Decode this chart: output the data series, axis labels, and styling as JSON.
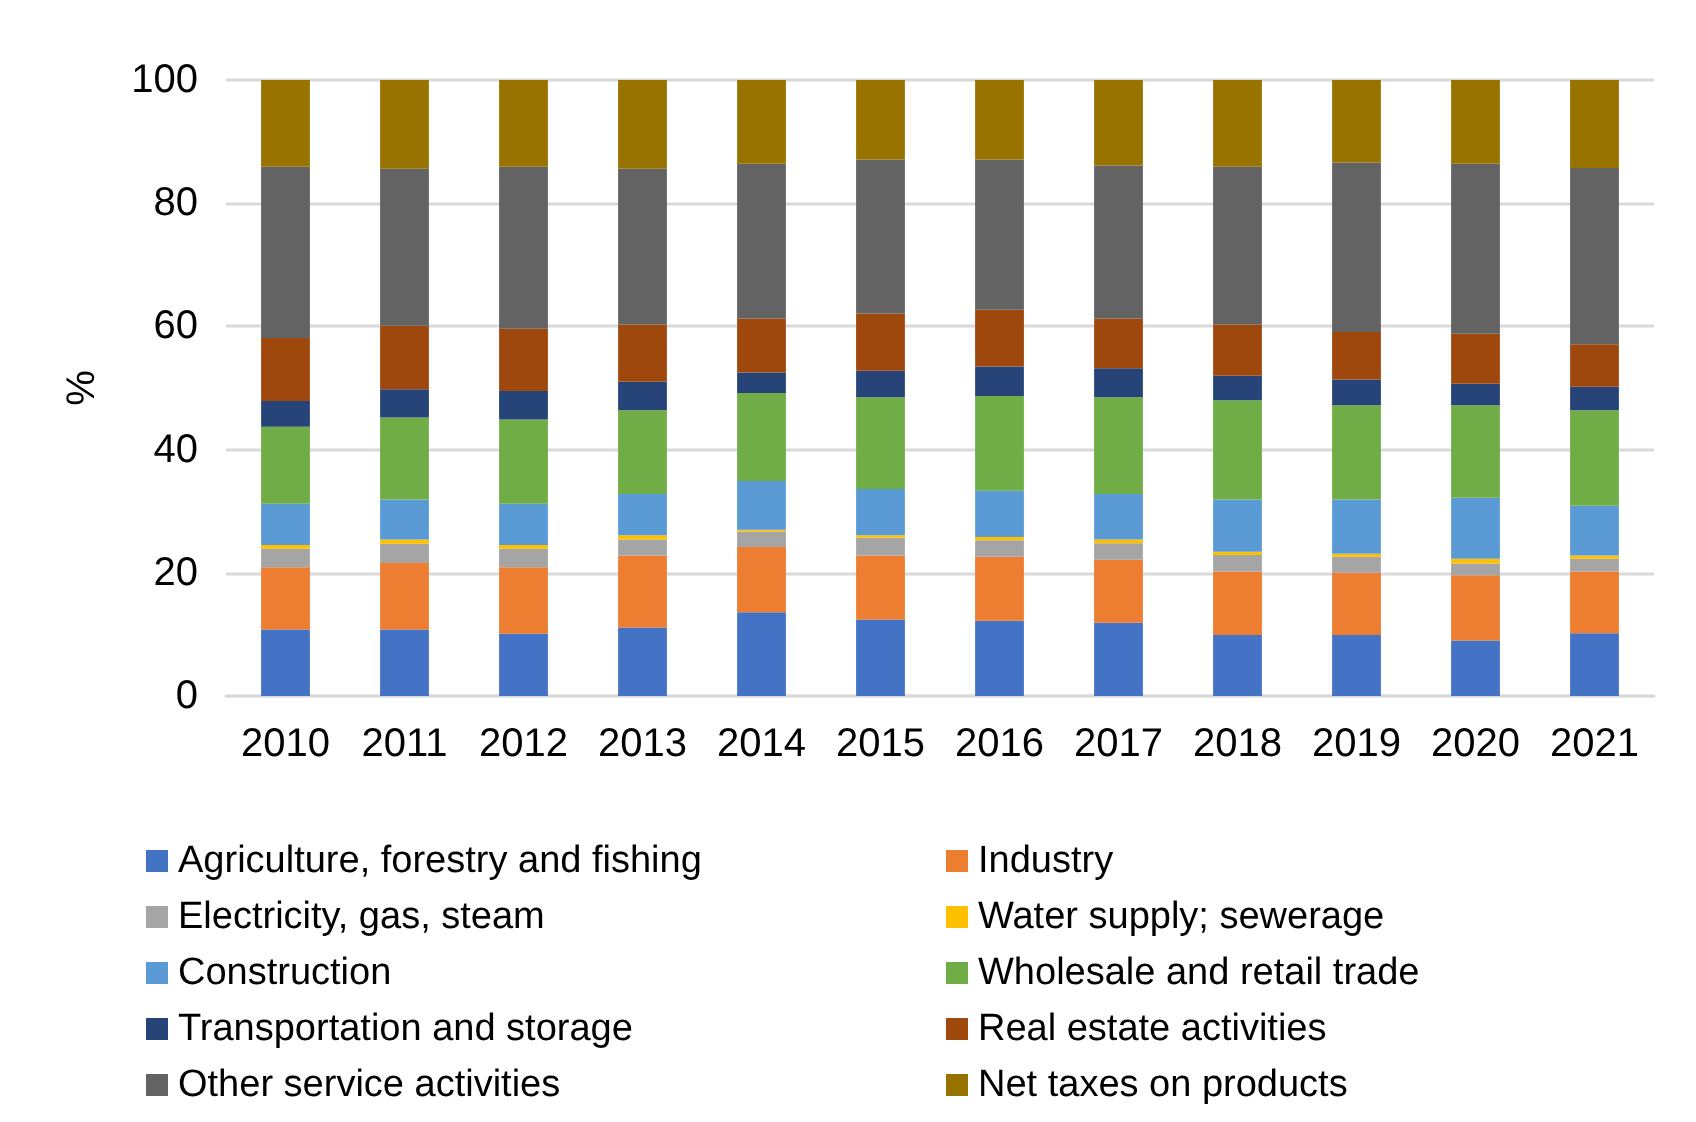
{
  "chart_data": {
    "type": "bar",
    "stacked": true,
    "ylabel": "%",
    "ylim": [
      0,
      100
    ],
    "yticks": [
      0,
      20,
      40,
      60,
      80,
      100
    ],
    "grid": "y",
    "legend": "bottom",
    "categories": [
      "2010",
      "2011",
      "2012",
      "2013",
      "2014",
      "2015",
      "2016",
      "2017",
      "2018",
      "2019",
      "2020",
      "2021"
    ],
    "series": [
      {
        "name": "Agriculture, forestry and fishing",
        "color": "#4472c4",
        "values": [
          10.8,
          10.8,
          10.1,
          11.1,
          13.6,
          12.4,
          12.2,
          11.9,
          9.9,
          9.9,
          9.0,
          10.2
        ]
      },
      {
        "name": "Industry",
        "color": "#ed7d31",
        "values": [
          10.1,
          10.8,
          10.8,
          11.7,
          10.6,
          10.4,
          10.4,
          10.2,
          10.3,
          10.1,
          10.6,
          10.0
        ]
      },
      {
        "name": "Electricity, gas, steam",
        "color": "#a5a5a5",
        "values": [
          3.0,
          3.1,
          3.0,
          2.6,
          2.5,
          2.9,
          2.7,
          2.7,
          2.7,
          2.6,
          1.9,
          2.1
        ]
      },
      {
        "name": "Water supply; sewerage",
        "color": "#ffc000",
        "values": [
          0.6,
          0.7,
          0.6,
          0.7,
          0.3,
          0.4,
          0.5,
          0.6,
          0.5,
          0.5,
          0.8,
          0.5
        ]
      },
      {
        "name": "Construction",
        "color": "#5b9bd5",
        "values": [
          6.7,
          6.5,
          6.7,
          6.7,
          7.9,
          7.5,
          7.5,
          7.4,
          8.5,
          8.8,
          9.9,
          8.1
        ]
      },
      {
        "name": "Wholesale and retail trade",
        "color": "#70ad47",
        "values": [
          12.5,
          13.3,
          13.7,
          13.6,
          14.3,
          14.9,
          15.4,
          15.7,
          16.1,
          15.3,
          15.0,
          15.5
        ]
      },
      {
        "name": "Transportation and storage",
        "color": "#264478",
        "values": [
          4.2,
          4.6,
          4.6,
          4.6,
          3.3,
          4.3,
          4.8,
          4.7,
          4.0,
          4.2,
          3.5,
          3.8
        ]
      },
      {
        "name": "Real estate activities",
        "color": "#9e480e",
        "values": [
          10.2,
          10.3,
          10.1,
          9.3,
          8.8,
          9.3,
          9.2,
          8.1,
          8.3,
          7.7,
          8.1,
          6.9
        ]
      },
      {
        "name": "Other service activities",
        "color": "#636363",
        "values": [
          27.8,
          25.5,
          26.3,
          25.3,
          25.1,
          25.0,
          24.4,
          24.8,
          25.6,
          27.5,
          27.6,
          28.6
        ]
      },
      {
        "name": "Net taxes on products",
        "color": "#997300",
        "values": [
          14.1,
          14.4,
          14.1,
          14.4,
          13.6,
          12.9,
          12.9,
          13.9,
          14.1,
          13.4,
          13.6,
          14.3
        ]
      }
    ]
  }
}
